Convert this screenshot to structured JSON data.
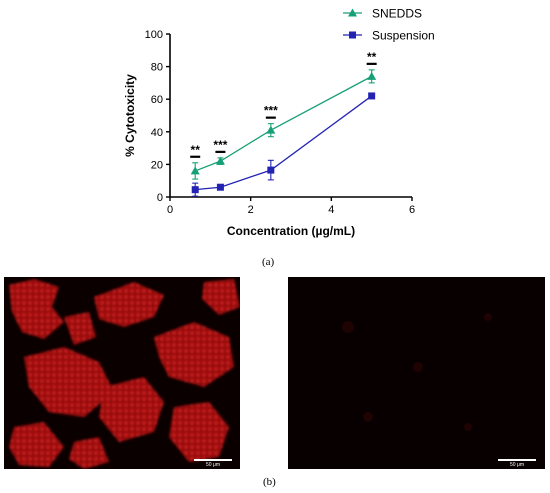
{
  "chart_data": {
    "type": "line",
    "xlabel": "Concentration (µg/mL)",
    "ylabel": "% Cytotoxicity",
    "xlim": [
      0,
      6
    ],
    "ylim": [
      0,
      100
    ],
    "xticks": [
      "0",
      "2",
      "4",
      "6"
    ],
    "yticks": [
      "0",
      "20",
      "40",
      "60",
      "80",
      "100"
    ],
    "grid": false,
    "legend_position": "top-right",
    "series": [
      {
        "name": "SNEDDS",
        "marker": "triangle",
        "color": "#17a077",
        "x": [
          0.625,
          1.25,
          2.5,
          5
        ],
        "y": [
          16,
          22,
          41,
          74
        ],
        "err": [
          5,
          2,
          4,
          4
        ]
      },
      {
        "name": "Suspension",
        "marker": "square",
        "color": "#2323b3",
        "x": [
          0.625,
          1.25,
          2.5,
          5
        ],
        "y": [
          4.5,
          6,
          16.5,
          62
        ],
        "err": [
          4,
          1,
          6,
          1
        ]
      }
    ],
    "annotations": [
      {
        "x": 0.625,
        "text": "**"
      },
      {
        "x": 1.25,
        "text": "***"
      },
      {
        "x": 2.5,
        "text": "***"
      },
      {
        "x": 5,
        "text": "**"
      }
    ]
  },
  "panel_a_label": "(a)",
  "panel_b_label": "(b)",
  "images": {
    "left_scale_label": "50 μm",
    "right_scale_label": "50 μm"
  }
}
